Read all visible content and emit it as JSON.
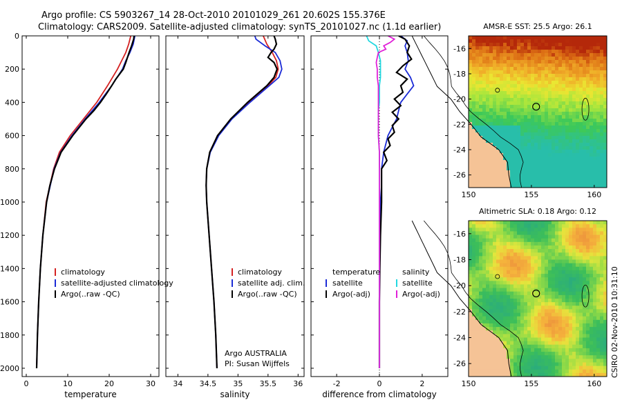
{
  "header": {
    "title_line1": "Argo profile: CS 5903267_14 28-Oct-2010 20101029_261 20.602S 155.376E",
    "title_line2": "Climatology: CARS2009. Satellite-adjusted climatology: synTS_20101027.nc (1.1d earlier)"
  },
  "side_note": "CSIRO 02-Nov-2010 10:31:10",
  "colors": {
    "red": "#d42020",
    "blue": "#1a2ad6",
    "black": "#000000",
    "cyan": "#22d8e0",
    "magenta": "#e020d8"
  },
  "chart_data": [
    {
      "type": "line",
      "id": "temperature",
      "xlabel": "temperature",
      "xlim": [
        -1,
        32
      ],
      "ylim": [
        2050,
        0
      ],
      "xticks": [
        0,
        10,
        20,
        30
      ],
      "yticks": [
        0,
        200,
        400,
        600,
        800,
        1000,
        1200,
        1400,
        1600,
        1800,
        2000
      ],
      "legend": [
        "climatology",
        "satellite-adjusted climatology",
        "Argo(..raw -QC)"
      ],
      "series": [
        {
          "name": "climatology",
          "color": "red",
          "depth": [
            0,
            50,
            100,
            150,
            200,
            300,
            400,
            500,
            600,
            700,
            800,
            1000,
            1200,
            1400,
            1600,
            1800,
            2000
          ],
          "values": [
            25.2,
            24.7,
            24.0,
            23.0,
            22.0,
            19.6,
            17.0,
            13.8,
            10.6,
            8.0,
            6.6,
            4.8,
            4.0,
            3.4,
            3.0,
            2.7,
            2.5
          ]
        },
        {
          "name": "satellite-adjusted climatology",
          "color": "blue",
          "depth": [
            0,
            50,
            100,
            150,
            200,
            300,
            400,
            500,
            600,
            700,
            800,
            1000,
            1200,
            1400,
            1600,
            1800,
            2000
          ],
          "values": [
            26.2,
            25.8,
            25.0,
            24.0,
            23.2,
            20.6,
            17.6,
            14.2,
            11.0,
            8.3,
            6.7,
            4.9,
            4.0,
            3.4,
            3.0,
            2.7,
            2.5
          ]
        },
        {
          "name": "Argo(..raw -QC)",
          "color": "black",
          "depth": [
            0,
            20,
            60,
            100,
            160,
            200,
            260,
            300,
            350,
            400,
            450,
            500,
            600,
            700,
            800,
            900,
            1000,
            1200,
            1400,
            1600,
            1800,
            2000
          ],
          "values": [
            26.0,
            25.9,
            25.4,
            24.8,
            24.0,
            23.4,
            21.6,
            20.6,
            19.3,
            17.9,
            16.3,
            14.4,
            11.2,
            8.4,
            6.8,
            5.7,
            4.9,
            4.0,
            3.4,
            3.0,
            2.7,
            2.5
          ]
        }
      ]
    },
    {
      "type": "line",
      "id": "salinity",
      "xlabel": "salinity",
      "xlim": [
        33.8,
        36.1
      ],
      "ylim": [
        2050,
        0
      ],
      "xticks": [
        34,
        34.5,
        35,
        35.5,
        36
      ],
      "xtick_labels": [
        "34",
        "34.5",
        "35",
        "35.5",
        "36"
      ],
      "legend": [
        "climatology",
        "satellite adj. clim.",
        "Argo(..raw -QC)"
      ],
      "annotation": [
        "Argo AUSTRALIA",
        "PI: Susan Wijffels"
      ],
      "series": [
        {
          "name": "climatology",
          "color": "red",
          "depth": [
            0,
            50,
            100,
            150,
            200,
            250,
            300,
            350,
            400,
            500,
            600,
            700,
            800,
            900,
            1000,
            1200,
            1400,
            1600,
            1800,
            2000
          ],
          "values": [
            35.42,
            35.48,
            35.57,
            35.64,
            35.67,
            35.63,
            35.5,
            35.35,
            35.18,
            34.88,
            34.66,
            34.53,
            34.48,
            34.47,
            34.48,
            34.52,
            34.56,
            34.6,
            34.63,
            34.65
          ]
        },
        {
          "name": "satellite adj. clim.",
          "color": "blue",
          "depth": [
            0,
            20,
            60,
            100,
            150,
            200,
            250,
            300,
            350,
            400,
            500,
            600,
            700,
            800,
            900,
            1000,
            1200,
            1400,
            1600,
            1800,
            2000
          ],
          "values": [
            35.28,
            35.3,
            35.45,
            35.62,
            35.7,
            35.73,
            35.68,
            35.52,
            35.36,
            35.2,
            34.9,
            34.68,
            34.54,
            34.48,
            34.47,
            34.48,
            34.52,
            34.56,
            34.6,
            34.63,
            34.65
          ]
        },
        {
          "name": "Argo(..raw -QC)",
          "color": "black",
          "depth": [
            0,
            20,
            50,
            80,
            100,
            130,
            160,
            200,
            250,
            300,
            350,
            400,
            500,
            600,
            700,
            800,
            900,
            1000,
            1200,
            1400,
            1600,
            1800,
            2000
          ],
          "values": [
            35.6,
            35.62,
            35.64,
            35.6,
            35.55,
            35.5,
            35.6,
            35.65,
            35.6,
            35.48,
            35.32,
            35.16,
            34.88,
            34.66,
            34.53,
            34.48,
            34.47,
            34.48,
            34.52,
            34.56,
            34.6,
            34.63,
            34.65
          ]
        }
      ]
    },
    {
      "type": "line",
      "id": "difference",
      "xlabel": "difference from climatology",
      "xlim": [
        -3.2,
        3.2
      ],
      "ylim": [
        2050,
        0
      ],
      "xticks": [
        -2,
        0,
        2
      ],
      "legend_left_title": "temperature",
      "legend_right_title": "salinity",
      "legend_left": [
        "satellite",
        "Argo(-adj)"
      ],
      "legend_right": [
        "satellite",
        "Argo(-adj)"
      ],
      "series": [
        {
          "name": "temperature satellite",
          "color": "blue",
          "depth": [
            0,
            30,
            60,
            100,
            150,
            200,
            250,
            300,
            350,
            400,
            450,
            500,
            550,
            600,
            650,
            700,
            800,
            900,
            1000,
            1200,
            1400,
            1600,
            1800,
            2000
          ],
          "values": [
            1.0,
            1.3,
            1.2,
            1.3,
            1.35,
            1.2,
            1.45,
            1.6,
            1.3,
            1.0,
            0.9,
            0.8,
            0.6,
            0.4,
            0.3,
            0.2,
            0.1,
            0.1,
            0.05,
            0.02,
            0.01,
            0.0,
            0.0,
            0.0
          ]
        },
        {
          "name": "temperature Argo(-adj)",
          "color": "black",
          "depth": [
            0,
            20,
            60,
            100,
            140,
            180,
            220,
            260,
            300,
            340,
            380,
            420,
            460,
            500,
            540,
            580,
            620,
            660,
            700,
            750,
            800,
            900,
            1000,
            1200,
            1400,
            1600,
            1800,
            2000
          ],
          "values": [
            0.9,
            1.2,
            1.4,
            1.3,
            1.5,
            1.1,
            0.8,
            1.3,
            1.0,
            1.1,
            0.7,
            1.0,
            0.6,
            0.9,
            0.6,
            0.7,
            0.4,
            0.5,
            0.2,
            0.35,
            0.1,
            0.1,
            0.1,
            0.05,
            0.02,
            0.0,
            0.0,
            0.0
          ]
        },
        {
          "name": "salinity satellite",
          "color": "cyan",
          "depth": [
            0,
            30,
            60,
            100,
            150,
            200,
            250,
            300,
            350,
            400,
            450,
            500,
            600,
            700,
            800,
            900,
            1000,
            1200,
            1400,
            1600,
            1800,
            2000
          ],
          "values": [
            -0.6,
            -0.5,
            -0.15,
            -0.05,
            0.05,
            0.05,
            0.05,
            0.0,
            0.0,
            0.0,
            -0.05,
            -0.05,
            -0.05,
            0.0,
            0.0,
            0.0,
            0.0,
            0.0,
            0.0,
            0.0,
            0.0,
            0.0
          ]
        },
        {
          "name": "salinity Argo(-adj)",
          "color": "magenta",
          "depth": [
            0,
            20,
            40,
            60,
            80,
            100,
            130,
            160,
            200,
            250,
            300,
            350,
            400,
            500,
            600,
            700,
            800,
            1000,
            1200,
            1400,
            1600,
            1800,
            2000
          ],
          "values": [
            0.4,
            0.7,
            0.5,
            0.2,
            0.3,
            -0.05,
            -0.1,
            -0.15,
            -0.1,
            -0.1,
            -0.05,
            -0.05,
            -0.05,
            -0.05,
            -0.05,
            0.0,
            0.0,
            0.0,
            0.0,
            0.0,
            0.0,
            0.0,
            0.0
          ]
        }
      ]
    },
    {
      "type": "heatmap",
      "id": "sst_map",
      "title": "AMSR-E SST: 25.5 Argo: 26.1",
      "xlim": [
        150,
        161
      ],
      "ylim": [
        -27,
        -15
      ],
      "xticks": [
        150,
        155,
        160
      ],
      "yticks": [
        -16,
        -18,
        -20,
        -22,
        -24,
        -26
      ],
      "float_position": [
        155.376,
        -20.602
      ]
    },
    {
      "type": "heatmap",
      "id": "sla_map",
      "title": "Altimetric SLA: 0.18 Argo: 0.12",
      "xlim": [
        150,
        161
      ],
      "ylim": [
        -27,
        -15
      ],
      "xticks": [
        150,
        155,
        160
      ],
      "yticks": [
        -16,
        -18,
        -20,
        -22,
        -24,
        -26
      ],
      "float_position": [
        155.376,
        -20.602
      ]
    }
  ]
}
